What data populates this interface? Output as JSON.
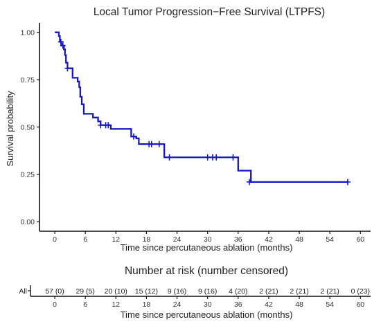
{
  "chart_data": [
    {
      "type": "line",
      "subtype": "kaplan-meier",
      "title": "Local Tumor Progression−Free Survival (LTPFS)",
      "xlabel": "Time since percutaneous ablation (months)",
      "ylabel": "Survival probability",
      "xlim": [
        -3,
        62
      ],
      "ylim": [
        -0.05,
        1.05
      ],
      "xticks": [
        0,
        6,
        12,
        18,
        24,
        30,
        36,
        42,
        48,
        54,
        60
      ],
      "yticks": [
        0,
        0.25,
        0.5,
        0.75,
        1.0
      ],
      "ytick_labels": [
        "0.00",
        "0.25",
        "0.50",
        "0.75",
        "1.00"
      ],
      "grid": false,
      "legend": "none",
      "series": [
        {
          "color": "#1515c8",
          "steps": [
            [
              0,
              1.0
            ],
            [
              0.8,
              0.98
            ],
            [
              1.0,
              0.95
            ],
            [
              1.3,
              0.93
            ],
            [
              1.8,
              0.91
            ],
            [
              2.0,
              0.88
            ],
            [
              2.2,
              0.84
            ],
            [
              2.5,
              0.81
            ],
            [
              3.5,
              0.76
            ],
            [
              4.5,
              0.74
            ],
            [
              4.8,
              0.71
            ],
            [
              5.0,
              0.66
            ],
            [
              5.3,
              0.62
            ],
            [
              5.7,
              0.57
            ],
            [
              7.5,
              0.55
            ],
            [
              8.5,
              0.53
            ],
            [
              9.0,
              0.51
            ],
            [
              11.0,
              0.49
            ],
            [
              15.0,
              0.45
            ],
            [
              16.0,
              0.44
            ],
            [
              16.5,
              0.41
            ],
            [
              21.5,
              0.34
            ],
            [
              36.0,
              0.27
            ],
            [
              38.5,
              0.21
            ],
            [
              57.5,
              0.21
            ]
          ],
          "censored": [
            [
              1.2,
              0.95
            ],
            [
              1.6,
              0.93
            ],
            [
              2.5,
              0.81
            ],
            [
              9.0,
              0.51
            ],
            [
              10.0,
              0.51
            ],
            [
              10.5,
              0.51
            ],
            [
              15.5,
              0.45
            ],
            [
              18.5,
              0.41
            ],
            [
              19.0,
              0.41
            ],
            [
              20.5,
              0.41
            ],
            [
              22.5,
              0.34
            ],
            [
              30.0,
              0.34
            ],
            [
              31.0,
              0.34
            ],
            [
              31.7,
              0.34
            ],
            [
              35.0,
              0.34
            ],
            [
              38.2,
              0.21
            ],
            [
              57.5,
              0.21
            ]
          ]
        }
      ]
    },
    {
      "type": "table",
      "title": "Number at risk (number censored)",
      "xlabel": "Time since percutaneous ablation (months)",
      "row_label": "All",
      "x": [
        0,
        6,
        12,
        18,
        24,
        30,
        36,
        42,
        48,
        54,
        60
      ],
      "cells": [
        "57 (0)",
        "29 (5)",
        "20 (10)",
        "15 (12)",
        "9 (16)",
        "9 (16)",
        "4 (20)",
        "2 (21)",
        "2 (21)",
        "2 (21)",
        "0 (23)"
      ],
      "row_label_color": "#1515c8"
    }
  ]
}
